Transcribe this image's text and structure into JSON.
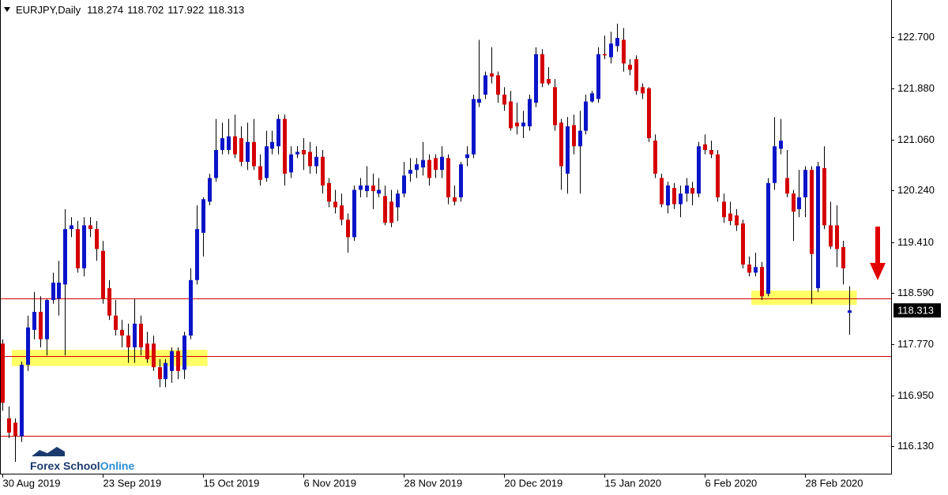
{
  "chart_data": {
    "type": "candlestick",
    "title": "EURJPY,Daily",
    "brand": [
      "Forex School",
      "Online"
    ],
    "categories": [
      "30 Aug 2019",
      null,
      null,
      null,
      null,
      null,
      null,
      null,
      null,
      null,
      null,
      null,
      null,
      null,
      null,
      null,
      "23 Sep 2019",
      null,
      null,
      null,
      null,
      null,
      null,
      null,
      null,
      null,
      null,
      null,
      null,
      null,
      null,
      null,
      "15 Oct 2019",
      null,
      null,
      null,
      null,
      null,
      null,
      null,
      null,
      null,
      null,
      null,
      null,
      null,
      null,
      null,
      "6 Nov 2019",
      null,
      null,
      null,
      null,
      null,
      null,
      null,
      null,
      null,
      null,
      null,
      null,
      null,
      null,
      null,
      "28 Nov 2019",
      null,
      null,
      null,
      null,
      null,
      null,
      null,
      null,
      null,
      null,
      null,
      null,
      null,
      null,
      null,
      "20 Dec 2019",
      null,
      null,
      null,
      null,
      null,
      null,
      null,
      null,
      null,
      null,
      null,
      null,
      null,
      null,
      null,
      "15 Jan 2020",
      null,
      null,
      null,
      null,
      null,
      null,
      null,
      null,
      null,
      null,
      null,
      null,
      null,
      null,
      null,
      "6 Feb 2020",
      null,
      null,
      null,
      null,
      null,
      null,
      null,
      null,
      null,
      null,
      null,
      null,
      null,
      null,
      null,
      "28 Feb 2020",
      null,
      null,
      null,
      null,
      null,
      null,
      null
    ],
    "open": [
      117.78,
      116.58,
      116.51,
      116.29,
      117.44,
      118.0,
      118.29,
      117.85,
      118.48,
      118.5,
      118.73,
      119.62,
      119.62,
      118.99,
      119.68,
      119.62,
      119.27,
      118.67,
      118.23,
      118.0,
      117.91,
      117.72,
      118.1,
      117.78,
      117.78,
      117.4,
      117.21,
      117.34,
      117.66,
      117.36,
      117.91,
      118.8,
      119.56,
      120.06,
      120.44,
      120.89,
      120.89,
      121.11,
      121.08,
      120.7,
      121.02,
      120.63,
      120.44,
      120.91,
      120.95,
      121.39,
      120.53,
      120.82,
      120.89,
      120.86,
      120.63,
      120.78,
      120.36,
      120.06,
      120.0,
      119.77,
      119.49,
      120.25,
      120.23,
      120.32,
      120.19,
      120.15,
      120.06,
      119.97,
      120.19,
      120.51,
      120.57,
      120.61,
      120.73,
      120.76,
      120.57,
      120.76,
      120.13,
      120.13,
      120.76,
      120.82,
      121.65,
      121.78,
      122.12,
      122.09,
      121.78,
      121.67,
      121.33,
      121.27,
      121.27,
      121.65,
      122.43,
      122.03,
      121.9,
      121.33,
      120.51,
      121.29,
      120.95,
      121.2,
      121.67,
      121.71,
      122.43,
      122.38,
      122.56,
      122.66,
      122.26,
      122.35,
      121.9,
      121.88,
      121.04,
      120.44,
      120.0,
      120.28,
      120.02,
      120.19,
      120.28,
      120.19,
      120.98,
      120.89,
      120.82,
      120.06,
      119.87,
      119.84,
      119.71,
      119.05,
      118.92,
      119.01,
      118.58,
      120.36,
      120.91,
      120.44,
      120.19,
      119.94,
      120.13,
      120.57,
      118.67,
      120.6,
      119.68,
      119.68,
      119.33,
      118.274
    ],
    "high": [
      117.85,
      116.77,
      116.58,
      117.49,
      118.23,
      118.61,
      118.54,
      118.5,
      118.92,
      119.11,
      119.94,
      119.81,
      119.75,
      119.81,
      119.81,
      119.75,
      119.43,
      118.8,
      118.48,
      118.16,
      118.1,
      118.5,
      118.23,
      117.97,
      117.91,
      117.53,
      117.53,
      117.72,
      117.72,
      117.97,
      118.99,
      120.0,
      120.13,
      120.51,
      121.39,
      121.33,
      121.39,
      121.46,
      121.27,
      121.33,
      121.39,
      120.82,
      121.2,
      121.2,
      121.46,
      121.46,
      120.95,
      120.95,
      121.08,
      121.02,
      120.95,
      120.89,
      120.44,
      120.25,
      120.19,
      119.87,
      120.32,
      120.44,
      120.63,
      120.51,
      120.44,
      120.32,
      120.25,
      120.25,
      120.7,
      120.76,
      120.76,
      121.02,
      120.82,
      120.82,
      120.95,
      120.82,
      120.32,
      120.7,
      120.95,
      121.78,
      122.66,
      122.15,
      122.54,
      122.15,
      121.9,
      121.84,
      121.65,
      121.52,
      121.78,
      122.54,
      122.51,
      122.22,
      122.03,
      121.39,
      121.42,
      121.46,
      121.52,
      121.78,
      121.84,
      122.54,
      122.73,
      122.79,
      122.92,
      122.85,
      122.35,
      122.41,
      121.96,
      121.9,
      121.14,
      120.51,
      120.38,
      120.36,
      120.32,
      120.44,
      120.38,
      121.02,
      121.14,
      121.04,
      120.89,
      120.19,
      120.06,
      119.94,
      119.77,
      119.18,
      119.24,
      119.09,
      120.44,
      121.42,
      121.39,
      120.89,
      120.25,
      120.57,
      120.63,
      120.63,
      120.7,
      120.95,
      120.06,
      120.0,
      119.43,
      118.702
    ],
    "low": [
      116.7,
      116.26,
      115.88,
      116.2,
      117.34,
      117.85,
      117.72,
      117.59,
      118.42,
      118.23,
      117.59,
      119.49,
      118.92,
      118.86,
      119.49,
      119.11,
      118.42,
      118.16,
      117.91,
      117.72,
      117.47,
      117.47,
      117.59,
      117.47,
      117.34,
      117.08,
      117.08,
      117.15,
      117.21,
      117.21,
      117.85,
      118.73,
      119.18,
      120.0,
      120.38,
      120.82,
      120.82,
      120.76,
      120.63,
      120.57,
      120.57,
      120.32,
      120.38,
      120.82,
      120.82,
      120.32,
      120.44,
      120.76,
      120.57,
      120.51,
      120.51,
      120.19,
      119.97,
      119.87,
      119.68,
      119.24,
      119.43,
      120.13,
      120.13,
      119.94,
      120.13,
      119.68,
      119.65,
      119.75,
      120.13,
      120.38,
      120.44,
      120.48,
      120.32,
      120.44,
      120.44,
      120.02,
      120.0,
      120.06,
      120.63,
      120.76,
      121.58,
      121.71,
      121.96,
      121.65,
      121.52,
      121.2,
      121.14,
      121.08,
      121.2,
      121.58,
      121.9,
      121.93,
      121.2,
      120.25,
      120.19,
      120.82,
      120.19,
      121.14,
      121.65,
      121.65,
      122.35,
      122.28,
      122.47,
      122.15,
      122.09,
      121.78,
      121.71,
      121.02,
      120.44,
      119.97,
      119.87,
      119.94,
      119.81,
      120.06,
      120.0,
      120.13,
      120.82,
      120.76,
      120.06,
      119.72,
      119.68,
      119.59,
      118.99,
      118.86,
      118.86,
      118.48,
      118.54,
      120.25,
      120.82,
      120.13,
      119.43,
      119.81,
      119.81,
      118.42,
      118.61,
      119.62,
      119.3,
      119.01,
      118.73,
      117.922
    ],
    "close": [
      116.83,
      116.35,
      116.3,
      117.44,
      118.04,
      118.29,
      117.85,
      118.48,
      118.76,
      118.76,
      119.62,
      119.68,
      118.99,
      119.68,
      119.62,
      119.3,
      118.5,
      118.23,
      118.0,
      117.91,
      117.72,
      118.1,
      117.72,
      117.53,
      117.4,
      117.21,
      117.47,
      117.66,
      117.34,
      117.91,
      118.8,
      119.62,
      120.1,
      120.44,
      120.89,
      121.08,
      121.11,
      120.82,
      120.7,
      121.02,
      120.63,
      120.41,
      120.95,
      121.02,
      121.39,
      120.51,
      120.82,
      120.86,
      120.82,
      120.63,
      120.78,
      120.32,
      120.06,
      119.97,
      119.77,
      119.49,
      120.25,
      120.32,
      120.32,
      120.23,
      120.25,
      119.72,
      119.72,
      120.19,
      120.48,
      120.57,
      120.66,
      120.73,
      120.44,
      120.57,
      120.78,
      120.13,
      120.06,
      120.66,
      120.82,
      121.71,
      121.71,
      122.09,
      122.07,
      121.78,
      121.62,
      121.24,
      121.27,
      121.33,
      121.71,
      122.43,
      121.96,
      121.96,
      121.29,
      120.63,
      121.27,
      120.95,
      121.2,
      121.67,
      121.8,
      122.43,
      122.41,
      122.6,
      122.69,
      122.28,
      122.18,
      121.84,
      121.8,
      121.08,
      120.51,
      120.02,
      120.32,
      120.02,
      120.19,
      120.32,
      120.19,
      120.95,
      120.89,
      120.82,
      120.13,
      119.81,
      119.75,
      119.68,
      119.05,
      118.92,
      119.01,
      118.54,
      120.36,
      120.95,
      121.04,
      120.19,
      119.9,
      120.13,
      120.57,
      119.22,
      120.63,
      119.68,
      119.34,
      119.3,
      118.99,
      118.313
    ],
    "up_color": "#0a14c8",
    "down_color": "#d40000",
    "levels": [
      118.5,
      117.576,
      116.295
    ],
    "level_color": "#d40000",
    "zones": [
      {
        "low": 117.42,
        "high": 117.68,
        "start": 1.5,
        "end": 32.7
      },
      {
        "low": 118.4,
        "high": 118.63,
        "start": 119.4,
        "end": 136.2
      }
    ],
    "zone_color": "#ffff66",
    "ylim": [
      115.69,
      123.3
    ],
    "yticks": [
      {
        "value": 122.7,
        "label": "122.700"
      },
      {
        "value": 121.88,
        "label": "121.880"
      },
      {
        "value": 121.06,
        "label": "121.060"
      },
      {
        "value": 120.24,
        "label": "120.240"
      },
      {
        "value": 119.41,
        "label": "119.410"
      },
      {
        "value": 118.59,
        "label": "118.590"
      },
      {
        "value": 117.77,
        "label": "117.770"
      },
      {
        "value": 116.95,
        "label": "116.950"
      },
      {
        "value": 116.13,
        "label": "116.130"
      }
    ]
  }
}
